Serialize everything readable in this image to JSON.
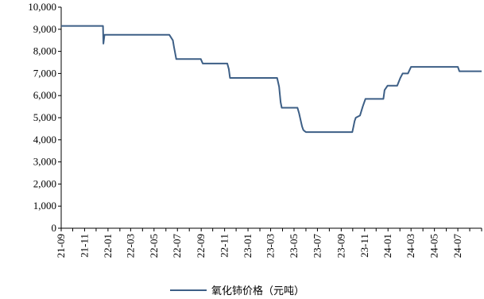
{
  "chart_data": {
    "type": "line",
    "title": "",
    "xlabel": "",
    "ylabel": "",
    "ylim": [
      0,
      10000
    ],
    "yticks": [
      0,
      1000,
      2000,
      3000,
      4000,
      5000,
      6000,
      7000,
      8000,
      9000,
      10000
    ],
    "ytick_labels": [
      "0",
      "1,000",
      "2,000",
      "3,000",
      "4,000",
      "5,000",
      "6,000",
      "7,000",
      "8,000",
      "9,000",
      "10,000"
    ],
    "xlim": [
      "2021-09",
      "2024-09"
    ],
    "xtick_labels": [
      "21-09",
      "21-11",
      "22-01",
      "22-03",
      "22-05",
      "22-07",
      "22-09",
      "22-11",
      "23-01",
      "23-03",
      "23-05",
      "23-07",
      "23-09",
      "23-11",
      "24-01",
      "24-03",
      "24-05",
      "24-07"
    ],
    "grid": false,
    "legend_position": "bottom-center",
    "series": [
      {
        "name": "氧化铈价格（元吨）",
        "color": "#3d5f86",
        "x": [
          "2021-09",
          "2021-12-19",
          "2021-12-20",
          "2021-12-23",
          "2022-06-10",
          "2022-06-19",
          "2022-06-22",
          "2022-06-28",
          "2022-08-31",
          "2022-09-05",
          "2022-11-08",
          "2022-11-12",
          "2022-11-15",
          "2023-03-18",
          "2023-03-23",
          "2023-03-27",
          "2023-03-30",
          "2023-05-10",
          "2023-05-14",
          "2023-05-18",
          "2023-05-22",
          "2023-05-25",
          "2023-05-28",
          "2023-06-01",
          "2023-09-30",
          "2023-10-03",
          "2023-10-06",
          "2023-10-09",
          "2023-10-20",
          "2023-10-27",
          "2023-11-03",
          "2023-11-06",
          "2023-12-20",
          "2023-12-23",
          "2023-12-31",
          "2024-01-25",
          "2024-02-02",
          "2024-02-08",
          "2024-02-22",
          "2024-03-01",
          "2024-07-01",
          "2024-07-05",
          "2024-09"
        ],
        "y": [
          9150,
          9150,
          8350,
          8750,
          8750,
          8500,
          8200,
          7650,
          7650,
          7450,
          7450,
          7200,
          6800,
          6800,
          6400,
          5700,
          5450,
          5450,
          5200,
          4900,
          4600,
          4450,
          4400,
          4350,
          4350,
          4600,
          4850,
          5000,
          5100,
          5500,
          5850,
          5850,
          5850,
          6250,
          6450,
          6450,
          6800,
          7000,
          7000,
          7300,
          7300,
          7100,
          7100
        ]
      }
    ]
  }
}
